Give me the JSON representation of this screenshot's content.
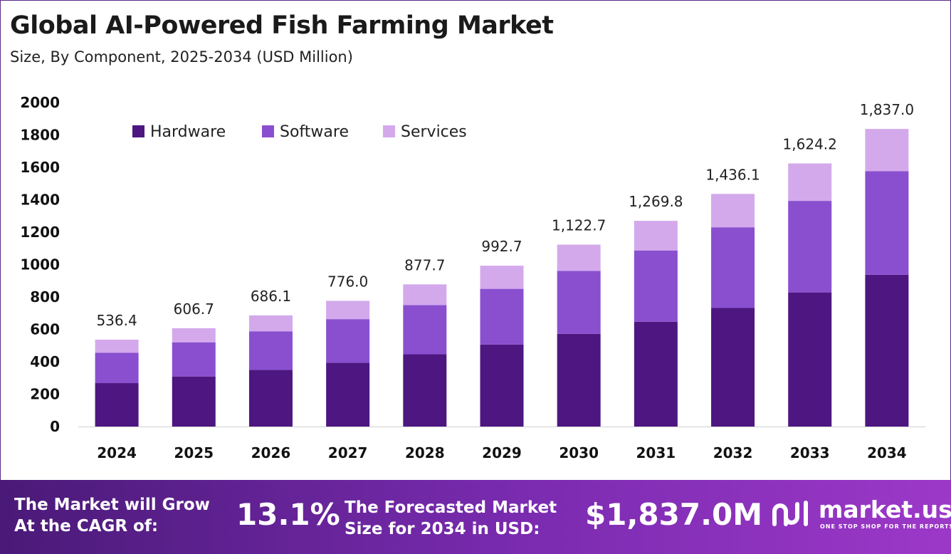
{
  "header": {
    "title": "Global AI-Powered Fish Farming Market",
    "subtitle": "Size, By Component, 2025-2034 (USD Million)"
  },
  "colors": {
    "hardware": "#4d1681",
    "software": "#8a4fcf",
    "services": "#d3a9ec"
  },
  "chart_data": {
    "type": "bar",
    "stacked": true,
    "categories": [
      "2024",
      "2025",
      "2026",
      "2027",
      "2028",
      "2029",
      "2030",
      "2031",
      "2032",
      "2033",
      "2034"
    ],
    "series": [
      {
        "name": "Hardware",
        "values": [
          268,
          309,
          350,
          394,
          446,
          506,
          572,
          647,
          732,
          828,
          937
        ]
      },
      {
        "name": "Software",
        "values": [
          188,
          211,
          238,
          269,
          304,
          344,
          389,
          440,
          498,
          565,
          639
        ]
      },
      {
        "name": "Services",
        "values": [
          80.4,
          86.7,
          98.1,
          113.0,
          127.7,
          142.7,
          161.7,
          182.8,
          206.1,
          231.2,
          261.0
        ]
      }
    ],
    "totals": [
      "536.4",
      "606.7",
      "686.1",
      "776.0",
      "877.7",
      "992.7",
      "1,122.7",
      "1,269.8",
      "1,436.1",
      "1,624.2",
      "1,837.0"
    ],
    "yticks": [
      "0",
      "200",
      "400",
      "600",
      "800",
      "1000",
      "1200",
      "1400",
      "1600",
      "1800",
      "2000"
    ],
    "ylim": [
      0,
      2000
    ],
    "legend_position": "top-left",
    "grid": false
  },
  "footer": {
    "cagr_label_line1": "The Market will Grow",
    "cagr_label_line2": "At the CAGR of:",
    "cagr_value": "13.1%",
    "forecast_label_line1": "The Forecasted Market",
    "forecast_label_line2": "Size for 2034 in USD:",
    "forecast_value": "$1,837.0M",
    "brand_name": "market.us",
    "brand_tagline": "ONE STOP SHOP FOR THE REPORTS"
  }
}
